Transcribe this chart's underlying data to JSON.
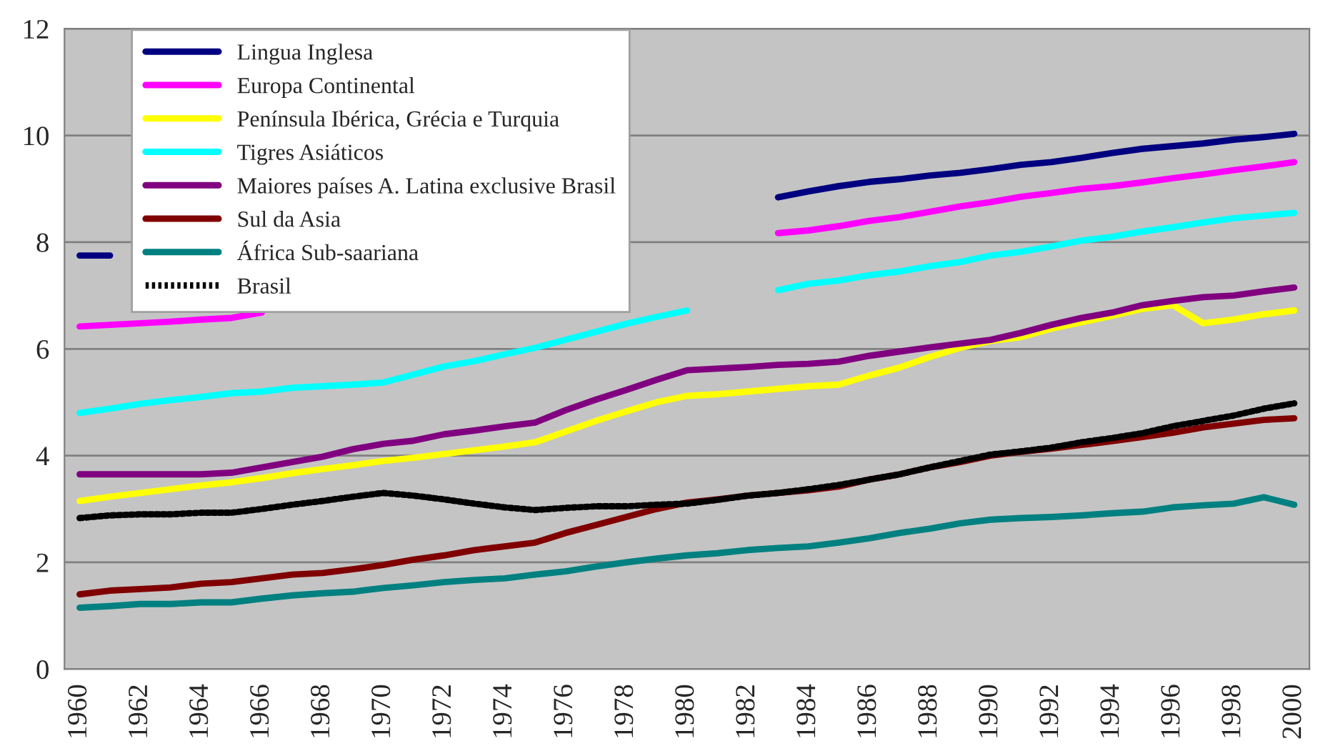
{
  "chart_data": {
    "type": "line",
    "x": [
      1960,
      1961,
      1962,
      1963,
      1964,
      1965,
      1966,
      1967,
      1968,
      1969,
      1970,
      1971,
      1972,
      1973,
      1974,
      1975,
      1976,
      1977,
      1978,
      1979,
      1980,
      1981,
      1982,
      1983,
      1984,
      1985,
      1986,
      1987,
      1988,
      1989,
      1990,
      1991,
      1992,
      1993,
      1994,
      1995,
      1996,
      1997,
      1998,
      1999,
      2000
    ],
    "series": [
      {
        "name": "Lingua Inglesa",
        "color": "#000080",
        "values": [
          7.75,
          7.75,
          null,
          null,
          null,
          null,
          null,
          null,
          null,
          null,
          null,
          null,
          null,
          null,
          null,
          null,
          null,
          null,
          null,
          null,
          null,
          null,
          null,
          8.84,
          8.95,
          9.05,
          9.13,
          9.18,
          9.25,
          9.3,
          9.37,
          9.45,
          9.5,
          9.58,
          9.67,
          9.75,
          9.8,
          9.85,
          9.92,
          9.97,
          10.03
        ]
      },
      {
        "name": "Europa Continental",
        "color": "#ff00ff",
        "values": [
          6.42,
          6.45,
          6.48,
          6.51,
          6.55,
          6.58,
          6.68,
          null,
          null,
          null,
          null,
          null,
          null,
          null,
          null,
          null,
          null,
          null,
          null,
          null,
          null,
          null,
          null,
          8.17,
          8.22,
          8.3,
          8.4,
          8.47,
          8.57,
          8.67,
          8.75,
          8.85,
          8.92,
          9.0,
          9.05,
          9.12,
          9.2,
          9.27,
          9.35,
          9.42,
          9.5
        ]
      },
      {
        "name": "Península Ibérica, Grécia e Turquia",
        "color": "#ffff00",
        "values": [
          3.15,
          3.23,
          3.3,
          3.37,
          3.44,
          3.5,
          3.58,
          3.67,
          3.75,
          3.82,
          3.9,
          3.96,
          4.03,
          4.1,
          4.17,
          4.25,
          4.45,
          4.65,
          4.83,
          5.0,
          5.12,
          5.15,
          5.2,
          5.25,
          5.3,
          5.33,
          5.5,
          5.65,
          5.85,
          6.02,
          6.15,
          6.22,
          6.38,
          6.5,
          6.62,
          6.75,
          6.82,
          6.48,
          6.55,
          6.65,
          6.72
        ]
      },
      {
        "name": "Tigres Asiáticos",
        "color": "#00ffff",
        "values": [
          4.8,
          4.88,
          4.97,
          5.04,
          5.1,
          5.17,
          5.2,
          5.27,
          5.3,
          5.33,
          5.37,
          5.52,
          5.67,
          5.77,
          5.9,
          6.02,
          6.17,
          6.32,
          6.47,
          6.6,
          6.72,
          null,
          null,
          7.1,
          7.22,
          7.28,
          7.38,
          7.45,
          7.55,
          7.63,
          7.75,
          7.82,
          7.92,
          8.03,
          8.1,
          8.2,
          8.28,
          8.37,
          8.45,
          8.5,
          8.55
        ]
      },
      {
        "name": "Maiores países A. Latina exclusive Brasil",
        "color": "#800080",
        "values": [
          3.65,
          3.65,
          3.65,
          3.65,
          3.65,
          3.68,
          3.78,
          3.88,
          3.98,
          4.12,
          4.22,
          4.28,
          4.4,
          4.47,
          4.55,
          4.62,
          4.85,
          5.05,
          5.23,
          5.42,
          5.6,
          5.63,
          5.66,
          5.7,
          5.72,
          5.76,
          5.87,
          5.95,
          6.03,
          6.1,
          6.17,
          6.3,
          6.45,
          6.58,
          6.68,
          6.82,
          6.9,
          6.97,
          7.0,
          7.08,
          7.15
        ]
      },
      {
        "name": "Sul da Asia",
        "color": "#800000",
        "values": [
          1.4,
          1.47,
          1.5,
          1.53,
          1.6,
          1.63,
          1.7,
          1.77,
          1.8,
          1.87,
          1.95,
          2.05,
          2.13,
          2.23,
          2.3,
          2.37,
          2.55,
          2.7,
          2.85,
          3.0,
          3.12,
          3.18,
          3.25,
          3.3,
          3.35,
          3.42,
          3.55,
          3.65,
          3.78,
          3.88,
          4.0,
          4.07,
          4.13,
          4.2,
          4.27,
          4.35,
          4.43,
          4.53,
          4.6,
          4.67,
          4.7
        ]
      },
      {
        "name": "África Sub-saariana",
        "color": "#008080",
        "values": [
          1.15,
          1.18,
          1.22,
          1.22,
          1.25,
          1.25,
          1.32,
          1.38,
          1.42,
          1.45,
          1.52,
          1.57,
          1.63,
          1.67,
          1.7,
          1.77,
          1.83,
          1.92,
          2.0,
          2.07,
          2.13,
          2.17,
          2.23,
          2.27,
          2.3,
          2.37,
          2.45,
          2.55,
          2.63,
          2.73,
          2.8,
          2.83,
          2.85,
          2.88,
          2.92,
          2.95,
          3.03,
          3.07,
          3.1,
          3.22,
          3.08
        ]
      },
      {
        "name": "Brasil",
        "color": "#000000",
        "line_style": "dotted",
        "values": [
          2.83,
          2.88,
          2.9,
          2.9,
          2.93,
          2.93,
          3.0,
          3.08,
          3.15,
          3.23,
          3.3,
          3.25,
          3.18,
          3.1,
          3.03,
          2.98,
          3.02,
          3.05,
          3.05,
          3.08,
          3.1,
          3.17,
          3.25,
          3.3,
          3.37,
          3.45,
          3.55,
          3.65,
          3.78,
          3.9,
          4.02,
          4.08,
          4.15,
          4.25,
          4.33,
          4.42,
          4.55,
          4.65,
          4.75,
          4.88,
          4.98
        ]
      }
    ],
    "xlim": [
      1959.5,
      2000.5
    ],
    "xticks": [
      1960,
      1962,
      1964,
      1966,
      1968,
      1970,
      1972,
      1974,
      1976,
      1978,
      1980,
      1982,
      1984,
      1986,
      1988,
      1990,
      1992,
      1994,
      1996,
      1998,
      2000
    ],
    "ylim": [
      0,
      12
    ],
    "yticks": [
      0,
      2,
      4,
      6,
      8,
      10,
      12
    ],
    "grid": "y",
    "legend": "top left",
    "line_style": "solid",
    "marker": "none"
  }
}
